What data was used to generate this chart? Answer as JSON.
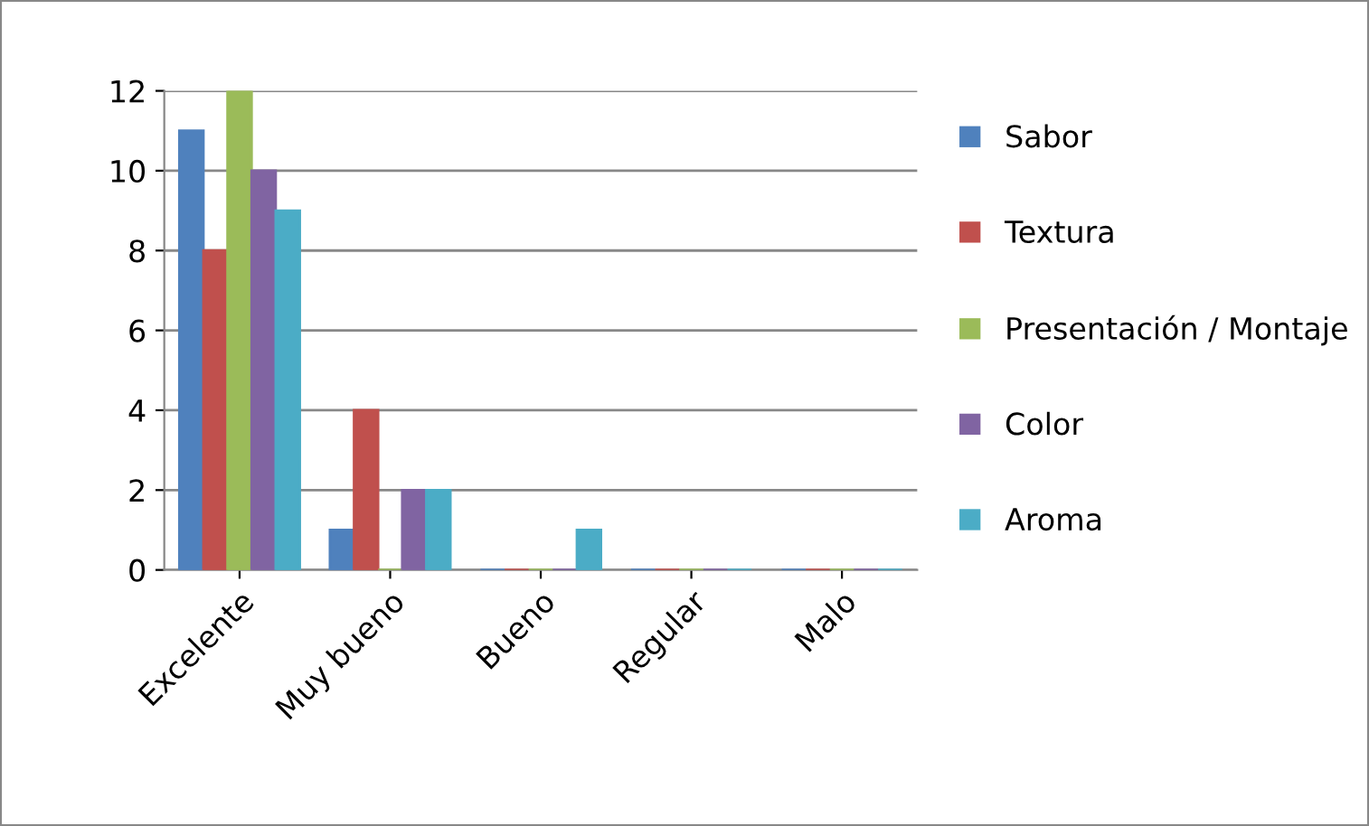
{
  "chart_data": {
    "type": "bar",
    "categories": [
      "Excelente",
      "Muy bueno",
      "Bueno",
      "Regular",
      "Malo"
    ],
    "series": [
      {
        "name": "Sabor",
        "color": "#4f81bd",
        "values": [
          11,
          1,
          0,
          0,
          0
        ]
      },
      {
        "name": "Textura",
        "color": "#c0504d",
        "values": [
          8,
          4,
          0,
          0,
          0
        ]
      },
      {
        "name": "Presentación / Montaje",
        "color": "#9bbb59",
        "values": [
          12,
          0,
          0,
          0,
          0
        ]
      },
      {
        "name": "Color",
        "color": "#8064a2",
        "values": [
          10,
          2,
          0,
          0,
          0
        ]
      },
      {
        "name": "Aroma",
        "color": "#4bacc6",
        "values": [
          9,
          2,
          1,
          0,
          0
        ]
      }
    ],
    "ylim": [
      0,
      12
    ],
    "yticks": [
      0,
      2,
      4,
      6,
      8,
      10,
      12
    ],
    "grid": "y",
    "legend": "right"
  }
}
